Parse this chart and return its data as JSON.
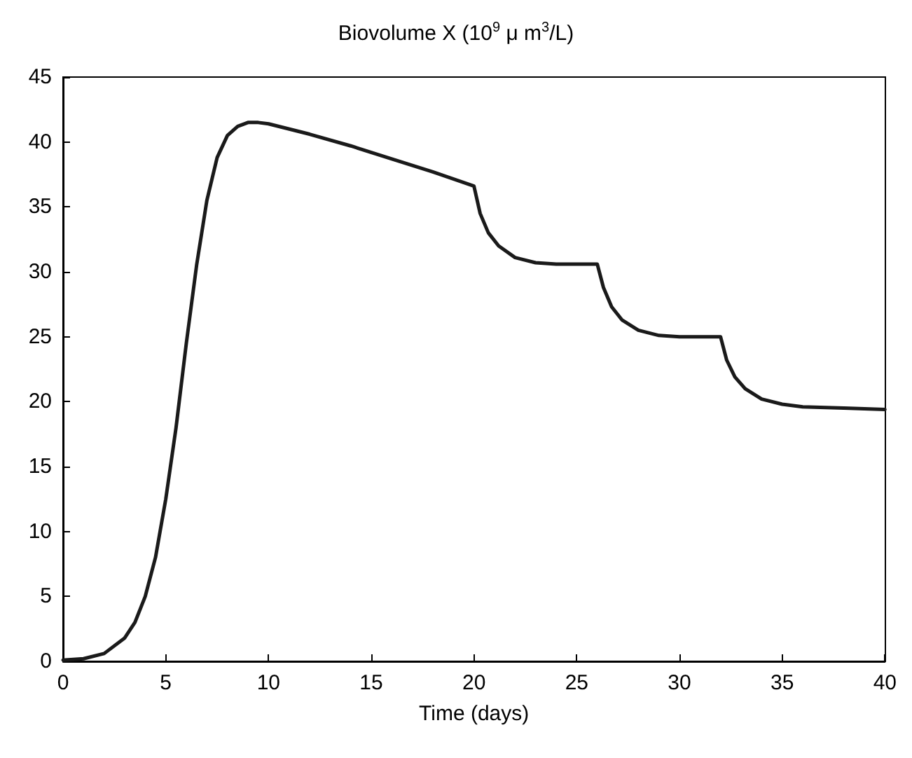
{
  "chart_data": {
    "type": "line",
    "title": "Biovolume X (10$^{9}$ μ m$^{3}$/L)",
    "xlabel": "Time (days)",
    "x": [
      0,
      1,
      2,
      3,
      3.5,
      4,
      4.5,
      5,
      5.5,
      6,
      6.5,
      7,
      7.5,
      8,
      8.5,
      9,
      9.5,
      10,
      12,
      14,
      16,
      18,
      20,
      20.3,
      20.7,
      21.2,
      22,
      23,
      24,
      26,
      26.3,
      26.7,
      27.2,
      28,
      29,
      30,
      32,
      32.3,
      32.7,
      33.2,
      34,
      35,
      36,
      38,
      40
    ],
    "series": [
      {
        "color": "#1a1a1a",
        "values": [
          0.1,
          0.2,
          0.6,
          1.8,
          3,
          5,
          8,
          12.5,
          18,
          24.5,
          30.5,
          35.5,
          38.8,
          40.5,
          41.2,
          41.5,
          41.5,
          41.4,
          40.6,
          39.7,
          38.7,
          37.7,
          36.6,
          34.5,
          33,
          32,
          31.1,
          30.7,
          30.6,
          30.6,
          28.8,
          27.3,
          26.3,
          25.5,
          25.1,
          25,
          25,
          23.2,
          21.9,
          21,
          20.2,
          19.8,
          19.6,
          19.5,
          19.4
        ]
      }
    ],
    "xlim": [
      0,
      40
    ],
    "xticks": [
      0,
      5,
      10,
      15,
      20,
      25,
      30,
      35,
      40
    ],
    "ylim": [
      0,
      45
    ],
    "yticks": [
      0,
      5,
      10,
      15,
      20,
      25,
      30,
      35,
      40,
      45
    ],
    "grid": false,
    "marker": "none",
    "line_style": "solid"
  }
}
